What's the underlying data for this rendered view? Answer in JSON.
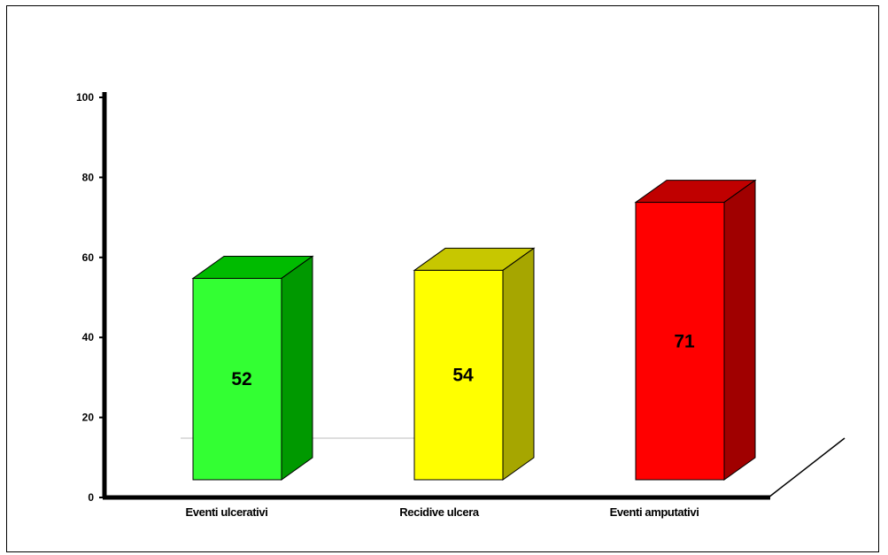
{
  "chart_data": {
    "type": "bar",
    "categories": [
      "Eventi ulcerativi",
      "Recidive ulcera",
      "Eventi amputativi"
    ],
    "values": [
      52,
      54,
      71
    ],
    "data_labels": [
      "52",
      "54",
      "71"
    ],
    "ylim": [
      0,
      100
    ],
    "yticks": [
      0,
      20,
      40,
      60,
      80,
      100
    ],
    "ytick_labels": [
      "0",
      "20",
      "40",
      "60",
      "80",
      "100"
    ],
    "grid": false,
    "legend": "none",
    "style": "3d",
    "colors": {
      "bars": [
        {
          "front": "#33ff33",
          "side": "#009900",
          "top": "#00bb00"
        },
        {
          "front": "#ffff00",
          "side": "#a6a600",
          "top": "#c7c700"
        },
        {
          "front": "#ff0000",
          "side": "#a00000",
          "top": "#c00000"
        }
      ],
      "axis": "#000000"
    }
  }
}
